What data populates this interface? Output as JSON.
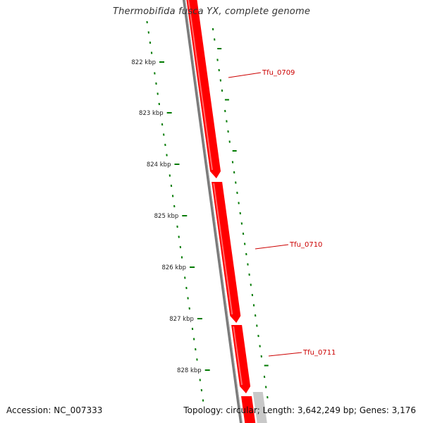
{
  "title": "Thermobifida fusca YX, complete genome",
  "footer": {
    "accession": "Accession: NC_007333",
    "summary": "Topology: circular; Length: 3,642,249 bp; Genes: 3,176"
  },
  "colors": {
    "gene_forward": "#ff0000",
    "gene_forward_dark": "#cc0000",
    "gene_other": "#c8c8c8",
    "backbone": "#7a7a7a",
    "tick": "#007a00",
    "label": "#cc0000",
    "background": "#ffffff"
  },
  "ticks": [
    {
      "label": "822 kbp"
    },
    {
      "label": "823 kbp"
    },
    {
      "label": "824 kbp"
    },
    {
      "label": "825 kbp"
    },
    {
      "label": "826 kbp"
    },
    {
      "label": "827 kbp"
    },
    {
      "label": "828 kbp"
    }
  ],
  "genes": [
    {
      "name": "Tfu_0709"
    },
    {
      "name": "Tfu_0710"
    },
    {
      "name": "Tfu_0711"
    }
  ]
}
